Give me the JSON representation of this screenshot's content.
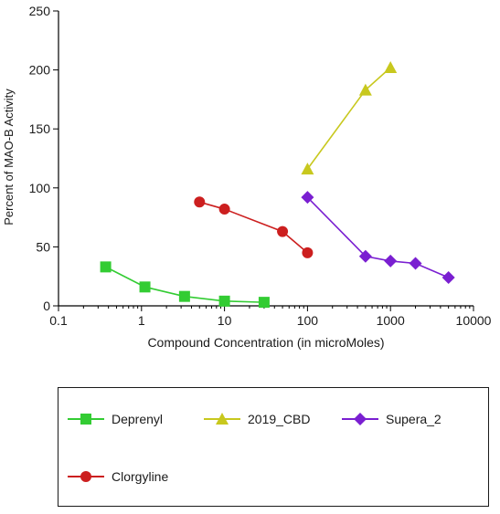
{
  "chart_data": {
    "type": "scatter",
    "title": "",
    "xlabel": "Compound Concentration (in microMoles)",
    "ylabel": "Percent of MAO-B Activity",
    "xscale": "log",
    "xlim": [
      0.1,
      10000
    ],
    "ylim": [
      0,
      250
    ],
    "xticks": [
      "0.1",
      "1",
      "10",
      "100",
      "1000",
      "10000"
    ],
    "yticks": [
      "0",
      "50",
      "100",
      "150",
      "200",
      "250"
    ],
    "grid": false,
    "legend_position": "bottom",
    "series": [
      {
        "name": "Deprenyl",
        "color": "#33cc33",
        "marker": "square",
        "x": [
          0.37,
          1.1,
          3.3,
          10,
          30
        ],
        "y": [
          33,
          16,
          8,
          4,
          3
        ]
      },
      {
        "name": "2019_CBD",
        "color": "#c8c81e",
        "marker": "triangle",
        "x": [
          100,
          500,
          1000
        ],
        "y": [
          116,
          183,
          202
        ]
      },
      {
        "name": "Supera_2",
        "color": "#7a1fd1",
        "marker": "diamond",
        "x": [
          100,
          500,
          1000,
          2000,
          5000
        ],
        "y": [
          92,
          42,
          38,
          36,
          24
        ]
      },
      {
        "name": "Clorgyline",
        "color": "#cc1f1f",
        "marker": "circle",
        "x": [
          5,
          10,
          50,
          100
        ],
        "y": [
          88,
          82,
          63,
          45
        ]
      }
    ]
  }
}
